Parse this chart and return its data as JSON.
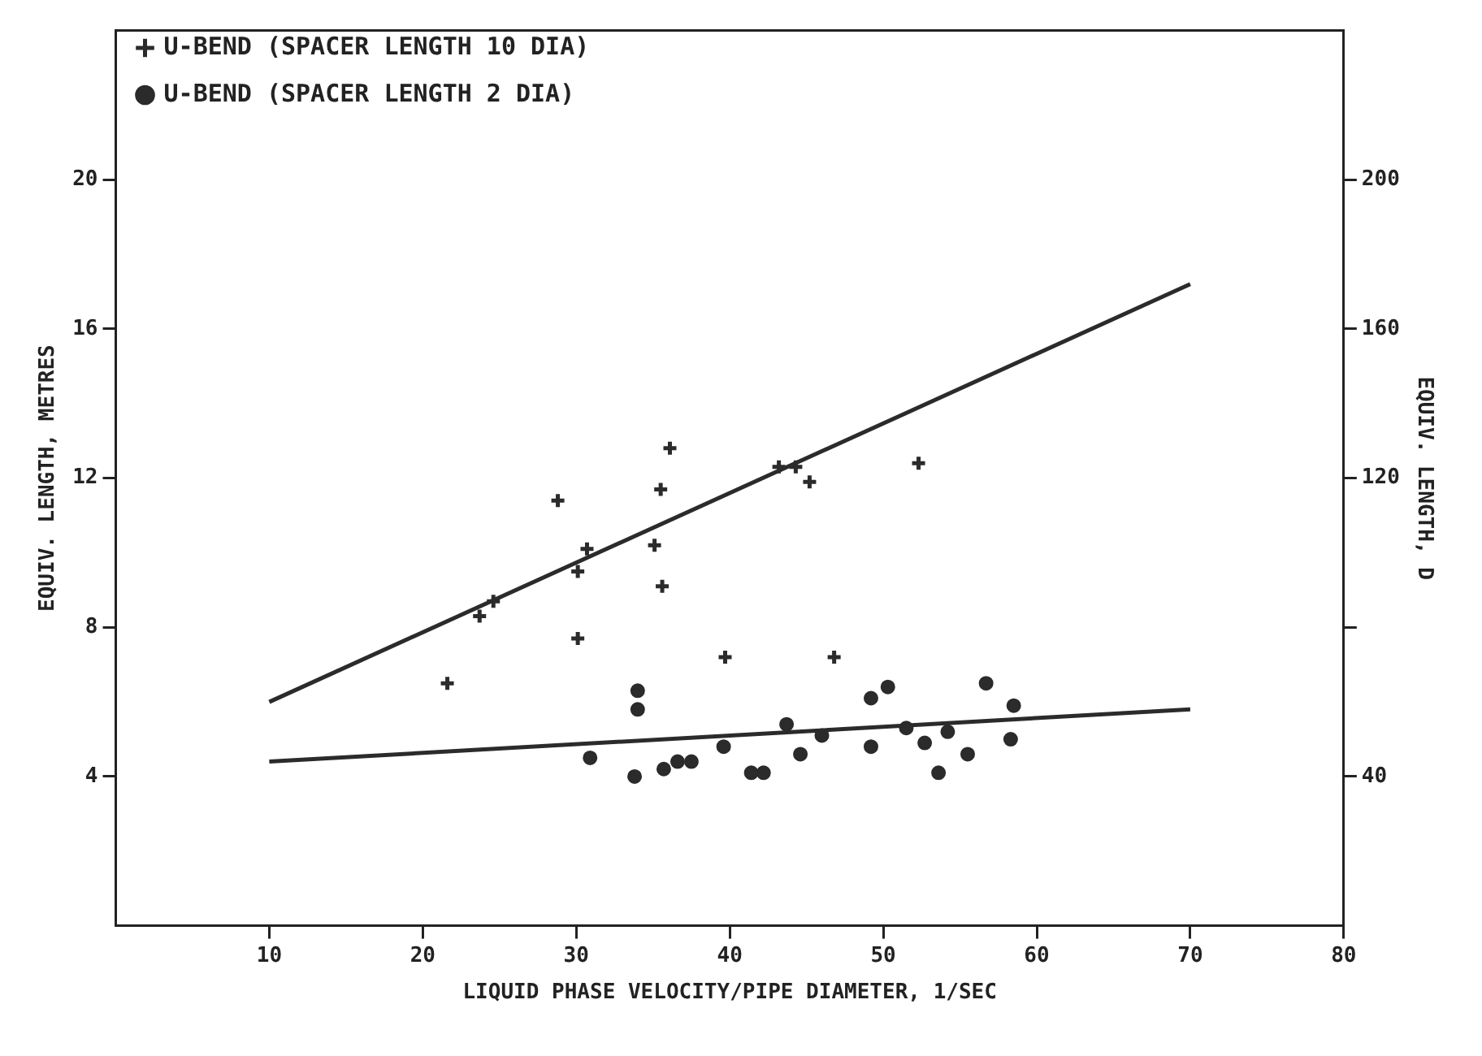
{
  "chart_data": {
    "type": "scatter",
    "xlabel": "LIQUID PHASE VELOCITY/PIPE DIAMETER, 1/SEC",
    "ylabel": "EQUIV. LENGTH, METRES",
    "y2label": "EQUIV. LENGTH, D",
    "xlim": [
      0,
      80
    ],
    "xticks": [
      10,
      20,
      30,
      40,
      50,
      60,
      70,
      80
    ],
    "ylim": [
      0,
      24
    ],
    "yticks": [
      4,
      8,
      12,
      16,
      20
    ],
    "y2lim": [
      0,
      240
    ],
    "y2ticks": [
      40,
      {
        "value": 80,
        "label": null
      },
      120,
      160,
      200
    ],
    "legend": "top left",
    "series": [
      {
        "name": "U-BEND (SPACER LENGTH 10 DIA)",
        "marker": "cross",
        "color": "#2b2b2b",
        "x": [
          21.6,
          23.7,
          24.6,
          28.8,
          30.1,
          30.7,
          30.1,
          35.1,
          35.5,
          35.6,
          36.1,
          39.7,
          43.2,
          44.3,
          45.2,
          46.8,
          52.3
        ],
        "values": [
          6.5,
          8.3,
          8.7,
          11.4,
          9.5,
          10.1,
          7.7,
          10.2,
          11.7,
          9.1,
          12.8,
          7.2,
          12.3,
          12.3,
          11.9,
          7.2,
          12.4
        ]
      },
      {
        "name": "U-BEND (SPACER LENGTH 2 DIA)",
        "marker": "circle",
        "color": "#2b2b2b",
        "x": [
          30.9,
          33.8,
          34.0,
          34.0,
          35.7,
          36.6,
          37.5,
          39.6,
          41.4,
          42.2,
          43.7,
          44.6,
          46.0,
          49.2,
          49.2,
          50.3,
          51.5,
          52.7,
          53.6,
          54.2,
          55.5,
          56.7,
          58.3,
          58.5
        ],
        "values": [
          4.5,
          4.0,
          6.3,
          5.8,
          4.2,
          4.4,
          4.4,
          4.8,
          4.1,
          4.1,
          5.4,
          4.6,
          5.1,
          6.1,
          4.8,
          6.4,
          5.3,
          4.9,
          4.1,
          5.2,
          4.6,
          6.5,
          5.0,
          5.9
        ]
      },
      {
        "type": "line",
        "marker": "none",
        "color": "#2b2b2b",
        "x": [
          10,
          70
        ],
        "values": [
          6.0,
          17.2
        ]
      },
      {
        "type": "line",
        "marker": "none",
        "color": "#2b2b2b",
        "x": [
          10,
          70
        ],
        "values": [
          4.4,
          5.8
        ]
      }
    ]
  }
}
